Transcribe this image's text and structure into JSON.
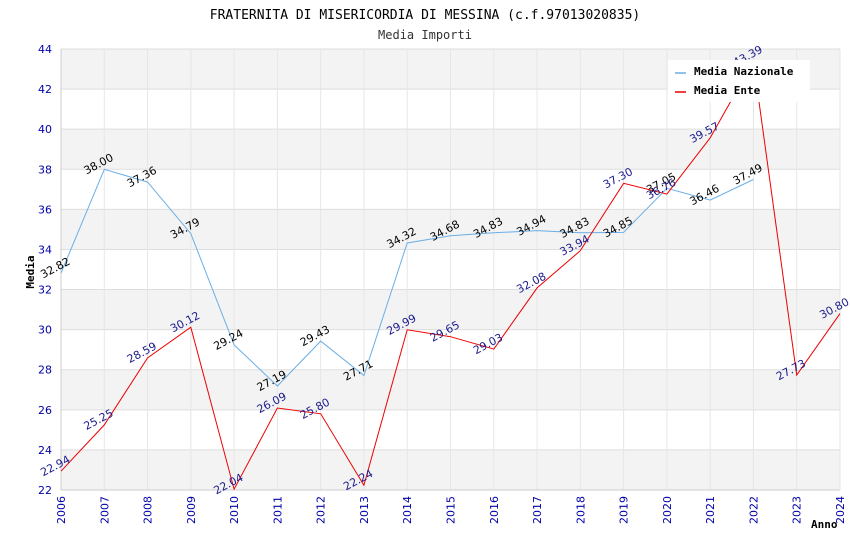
{
  "chart_data": {
    "type": "line",
    "title": "FRATERNITA DI MISERICORDIA DI MESSINA (c.f.97013020835)",
    "subtitle": "Media Importi",
    "xlabel": "Anno",
    "ylabel": "Media",
    "ylim": [
      22,
      44
    ],
    "yticks": [
      "22",
      "24",
      "26",
      "28",
      "30",
      "32",
      "34",
      "36",
      "38",
      "40",
      "42",
      "44"
    ],
    "categories": [
      "2006",
      "2007",
      "2008",
      "2009",
      "2010",
      "2011",
      "2012",
      "2013",
      "2014",
      "2015",
      "2016",
      "2017",
      "2018",
      "2019",
      "2020",
      "2021",
      "2022",
      "2023",
      "2024"
    ],
    "grid": true,
    "legend_position": "top-right",
    "series": [
      {
        "name": "Media Nazionale",
        "color": "#6aaee6",
        "label_color": "#000000",
        "values": [
          32.82,
          38.0,
          37.36,
          34.79,
          29.24,
          27.19,
          29.43,
          27.71,
          34.32,
          34.68,
          34.83,
          34.94,
          34.83,
          34.85,
          37.05,
          36.46,
          37.49,
          null,
          null
        ],
        "labels": [
          "32.82",
          "38.00",
          "37.36",
          "34.79",
          "29.24",
          "27.19",
          "29.43",
          "27.71",
          "34.32",
          "34.68",
          "34.83",
          "34.94",
          "34.83",
          "34.85",
          "37.05",
          "36.46",
          "37.49",
          null,
          null
        ]
      },
      {
        "name": "Media Ente",
        "color": "#ee0000",
        "label_color": "#1a1a8c",
        "values": [
          22.94,
          25.25,
          28.59,
          30.12,
          22.04,
          26.09,
          25.8,
          22.24,
          29.99,
          29.65,
          29.03,
          32.08,
          33.94,
          37.3,
          36.76,
          39.57,
          43.39,
          27.73,
          30.8
        ],
        "labels": [
          "22.94",
          "25.25",
          "28.59",
          "30.12",
          "22.04",
          "26.09",
          "25.80",
          "22.24",
          "29.99",
          "29.65",
          "29.03",
          "32.08",
          "33.94",
          "37.30",
          "36.76",
          "39.57",
          "43.39",
          "27.73",
          "30.80"
        ]
      }
    ]
  }
}
